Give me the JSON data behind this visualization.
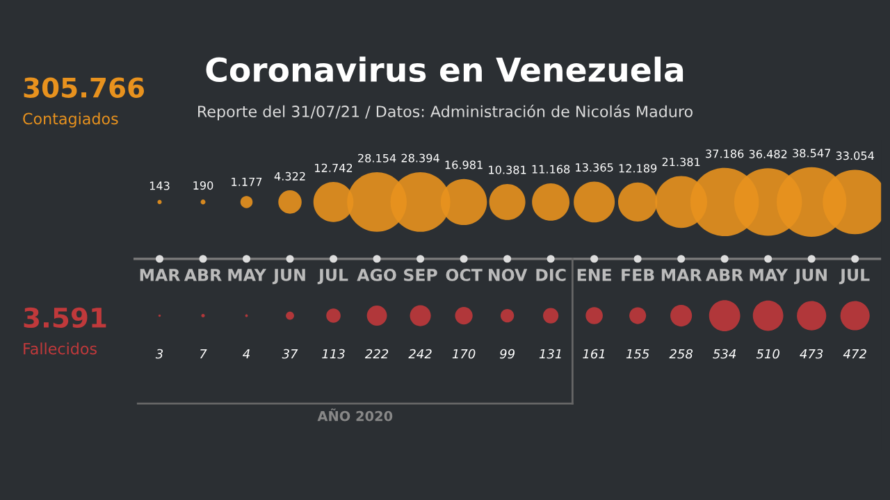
{
  "chart_data": {
    "type": "other",
    "title": "Coronavirus en Venezuela",
    "subtitle": "Reporte del 31/07/21 / Datos: Administración de Nicolás Maduro",
    "categories": [
      "MAR",
      "ABR",
      "MAY",
      "JUN",
      "JUL",
      "AGO",
      "SEP",
      "OCT",
      "NOV",
      "DIC",
      "ENE",
      "FEB",
      "MAR",
      "ABR",
      "MAY",
      "JUN",
      "JUL"
    ],
    "series": [
      {
        "name": "Contagiados",
        "color": "#e8921e",
        "values": [
          143,
          190,
          1177,
          4322,
          12742,
          28154,
          28394,
          16981,
          10381,
          11168,
          13365,
          12189,
          21381,
          37186,
          36482,
          38547,
          33054
        ],
        "value_labels": [
          "143",
          "190",
          "1.177",
          "4.322",
          "12.742",
          "28.154",
          "28.394",
          "16.981",
          "10.381",
          "11.168",
          "13.365",
          "12.189",
          "21.381",
          "37.186",
          "36.482",
          "38.547",
          "33.054"
        ]
      },
      {
        "name": "Fallecidos",
        "color": "#c0393b",
        "values": [
          3,
          7,
          4,
          37,
          113,
          222,
          242,
          170,
          99,
          131,
          161,
          155,
          258,
          534,
          510,
          473,
          472
        ],
        "value_labels": [
          "3",
          "7",
          "4",
          "37",
          "113",
          "222",
          "242",
          "170",
          "99",
          "131",
          "161",
          "155",
          "258",
          "534",
          "510",
          "473",
          "472"
        ]
      }
    ],
    "annotations": [
      "305.766",
      "3.591",
      "AÑO 2020"
    ]
  }
}
